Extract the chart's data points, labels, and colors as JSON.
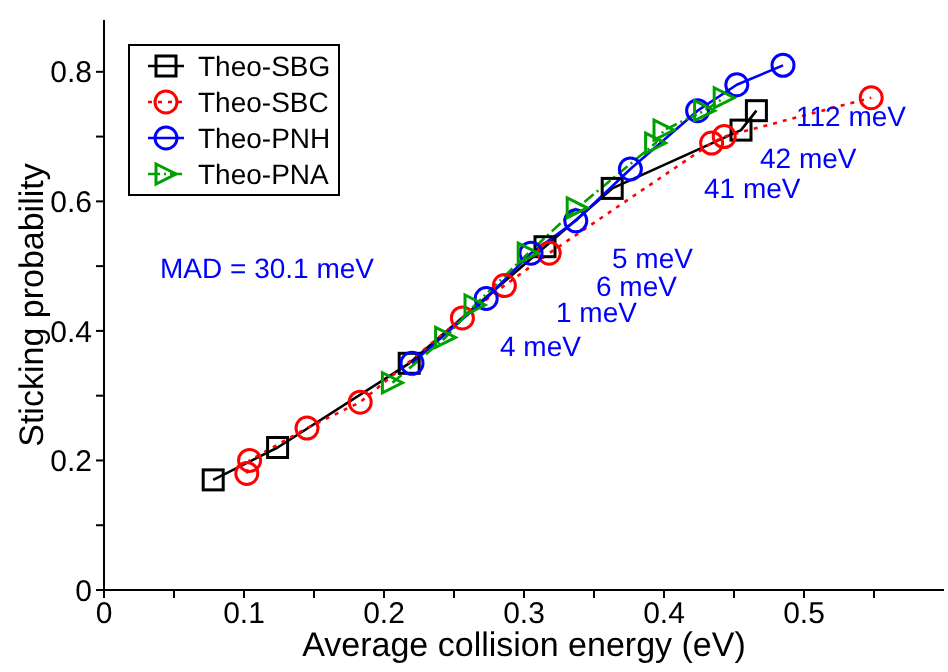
{
  "chart_data": {
    "type": "line",
    "xlabel": "Average collision energy (eV)",
    "ylabel": "Sticking probability",
    "xlim": [
      0,
      0.6
    ],
    "xticks": [
      0,
      {
        "value": 0.05,
        "label": null
      },
      0.1,
      {
        "value": 0.15,
        "label": null
      },
      0.2,
      {
        "value": 0.25,
        "label": null
      },
      0.3,
      {
        "value": 0.35,
        "label": null
      },
      0.4,
      {
        "value": 0.45,
        "label": null
      },
      0.5,
      {
        "value": 0.55,
        "label": null
      }
    ],
    "ylim": [
      0,
      0.88
    ],
    "yticks": [
      0,
      {
        "value": 0.1,
        "label": null
      },
      0.2,
      {
        "value": 0.3,
        "label": null
      },
      0.4,
      {
        "value": 0.5,
        "label": null
      },
      0.6,
      {
        "value": 0.7,
        "label": null
      },
      0.8
    ],
    "grid": false,
    "legend": "top left",
    "series": [
      {
        "name": "Theo-SBG",
        "color": "#000000",
        "marker": "square",
        "line_style": "solid",
        "x": [
          0.078,
          0.124,
          0.218,
          0.315,
          0.363,
          0.455,
          0.466
        ],
        "values": [
          0.17,
          0.22,
          0.35,
          0.53,
          0.62,
          0.71,
          0.74
        ]
      },
      {
        "name": "Theo-SBC",
        "color": "#ff0000",
        "marker": "circle",
        "line_style": "dotted",
        "x": [
          0.102,
          0.104,
          0.145,
          0.183,
          0.256,
          0.286,
          0.318,
          0.434,
          0.443,
          0.548
        ],
        "values": [
          0.18,
          0.2,
          0.25,
          0.29,
          0.42,
          0.47,
          0.52,
          0.69,
          0.7,
          0.76
        ]
      },
      {
        "name": "Theo-PNH",
        "color": "#0000ff",
        "marker": "circle",
        "line_style": "solid",
        "x": [
          0.22,
          0.273,
          0.305,
          0.337,
          0.376,
          0.424,
          0.452,
          0.485
        ],
        "values": [
          0.35,
          0.45,
          0.52,
          0.57,
          0.65,
          0.74,
          0.78,
          0.81
        ]
      },
      {
        "name": "Theo-PNA",
        "color": "#00a000",
        "marker": "triangle",
        "line_style": "dashed",
        "x": [
          0.206,
          0.244,
          0.265,
          0.303,
          0.338,
          0.394,
          0.4,
          0.429,
          0.443
        ],
        "values": [
          0.32,
          0.39,
          0.44,
          0.52,
          0.59,
          0.69,
          0.71,
          0.74,
          0.76
        ]
      }
    ],
    "annotations": [
      "MAD = 30.1 meV",
      "112 meV",
      "42 meV",
      "41 meV",
      "5 meV",
      "6 meV",
      "1 meV",
      "4 meV"
    ]
  }
}
